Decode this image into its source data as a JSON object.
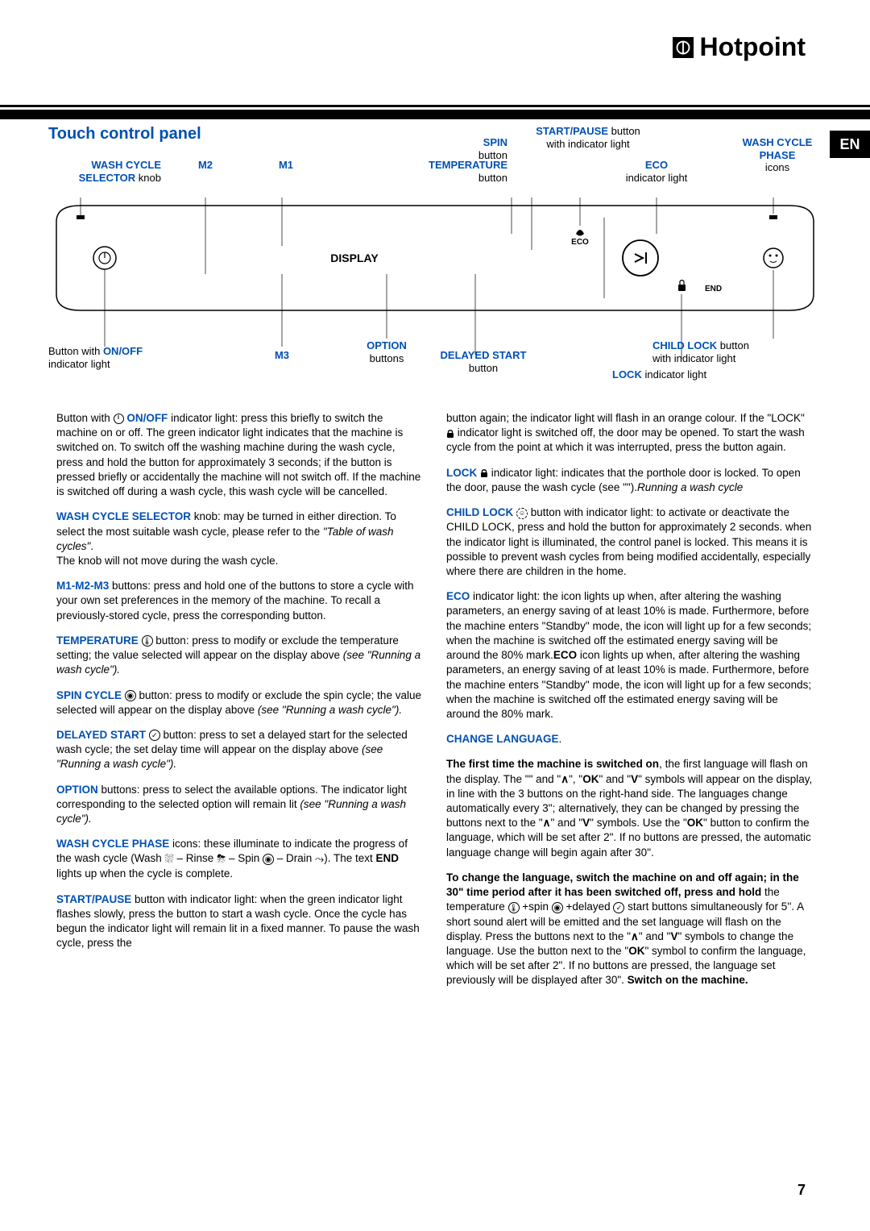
{
  "brand": "Hotpoint",
  "lang_tag": "EN",
  "page_number": "7",
  "section_title": "Touch control panel",
  "callouts": {
    "wash_cycle_selector": {
      "title": "WASH CYCLE SELECTOR",
      "sub": "knob"
    },
    "m1": "M1",
    "m2": "M2",
    "m3": "M3",
    "spin": {
      "title": "SPIN",
      "sub": "button"
    },
    "temperature": {
      "title": "TEMPERATURE",
      "sub": "button"
    },
    "start_pause": {
      "title": "START/PAUSE",
      "sub": "button",
      "sub2": "with indicator light"
    },
    "eco": {
      "title": "ECO",
      "sub": "indicator light"
    },
    "wash_cycle_phase": {
      "title": "WASH CYCLE PHASE",
      "sub": "icons"
    },
    "display": "DISPLAY",
    "on_off": {
      "pre": "Button with ",
      "title": "ON/OFF",
      "sub": "indicator light"
    },
    "option": {
      "title": "OPTION",
      "sub": "buttons"
    },
    "delayed_start": {
      "title": "DELAYED START",
      "sub": "button"
    },
    "child_lock": {
      "title": "CHILD LOCK",
      "sub": "button",
      "sub2": "with indicator light"
    },
    "lock": {
      "title": "LOCK",
      "sub": "indicator light"
    },
    "panel_eco_label": "ECO",
    "panel_end_label": "END"
  },
  "left_col": [
    {
      "lead": "",
      "pre_icon": "Button with ",
      "icon": "power",
      "lead2": "ON/OFF",
      "body": " indicator light: press this briefly to switch the machine on or off. The green indicator light indicates that the machine is switched on. To switch off the washing machine during the wash cycle, press and hold the button for approximately 3 seconds; if the button is pressed briefly or accidentally the machine will not switch off. If the machine is switched off during a wash cycle, this wash cycle will be cancelled."
    },
    {
      "lead": "WASH CYCLE SELECTOR",
      "body": " knob: may be turned in either direction. To select the most suitable wash cycle, please refer to the ",
      "ital": "\"Table of wash cycles\"",
      "body2": ".\nThe knob will not move during the wash cycle."
    },
    {
      "lead": "M1-M2-M3",
      "body": " buttons: press and hold one of the buttons to store a cycle with your own set preferences in the memory of the machine. To recall a previously-stored cycle, press the corresponding button."
    },
    {
      "lead": "TEMPERATURE",
      "icon": "temp",
      "body": " button: press to modify or exclude the temperature setting; the value selected will appear on the display above ",
      "ital": "(see \"Running a wash cycle\")."
    },
    {
      "lead": "SPIN CYCLE",
      "icon": "spin",
      "body": " button: press to modify or exclude the spin cycle; the value selected will appear on the display above ",
      "ital": "(see \"Running a wash cycle\")."
    },
    {
      "lead": "DELAYED START",
      "icon": "delay",
      "body": " button: press to set a delayed start for the selected wash cycle; the set delay time will appear on the display above ",
      "ital": "(see \"Running a wash cycle\")."
    },
    {
      "lead": "OPTION",
      "body": " buttons: press to select the available options. The indicator light corresponding to the selected option will remain lit ",
      "ital": "(see \"Running a wash cycle\")."
    },
    {
      "lead": "WASH CYCLE PHASE",
      "body": " icons: these illuminate to indicate the progress of the wash cycle (Wash ",
      "icon_seq": true,
      "body2": "). The text ",
      "bold_after": "END",
      "body3": " lights up when the cycle is complete."
    },
    {
      "lead": "START/PAUSE",
      "body": " button with indicator light: when the green indicator light flashes slowly, press the button to start a wash cycle. Once the cycle has begun the indicator light will remain lit in a fixed manner. To pause the wash cycle, press the"
    }
  ],
  "right_col": [
    {
      "body": "button again; the indicator light will flash in an orange colour. If the \"LOCK\" ",
      "icon": "lock",
      "body2": " indicator light is switched off, the door may be opened. To start the wash cycle from the point at which it was interrupted, press the button again."
    },
    {
      "lead": "LOCK",
      "icon": "lock",
      "body": " indicator light: indicates that the porthole door is locked. To open the door, pause the wash cycle (see \"",
      "ital": "Running a wash cycle",
      "body2": "\")."
    },
    {
      "lead": "CHILD LOCK",
      "icon": "childlock",
      "body": " button with indicator light: to activate or deactivate the CHILD LOCK, press and hold the button for approximately 2 seconds. when the indicator light is illuminated, the control panel is locked. This means it is possible to prevent wash cycles from being modified accidentally, especially where there are children in the home."
    },
    {
      "lead": "ECO",
      "body": " indicator light: the ",
      "bold_after": "ECO",
      "body2": " icon lights up when, after altering the washing parameters, an energy saving of at least 10% is made. Furthermore, before the machine enters \"Standby\" mode, the icon will light up for a few seconds; when the machine is switched off the estimated energy saving will be around the 80% mark."
    },
    {
      "lead": "CHANGE LANGUAGE",
      "body": "."
    },
    {
      "bold_start": "The first time the machine is switched on",
      "body": ", the first language will flash on the display. The \"",
      "bold1": "∧",
      "body1b": "\", \"",
      "bold2": "OK",
      "body2b": "\" and \"",
      "bold3": "V",
      "body3": "\" symbols will appear on the display, in line with the 3 buttons on the right-hand side. The languages change automatically every 3\"; alternatively, they can be changed by pressing the buttons next to the \"",
      "bold4": "∧",
      "body4": "\" and \"",
      "bold5": "V",
      "body5": "\" symbols. Use the \"",
      "bold6": "OK",
      "body6": "\" button to confirm the language, which will be set after 2\". If no buttons are pressed, the automatic language change will begin again after 30\"."
    },
    {
      "bold_start": "To change the language, switch the machine on and off again; in the 30\" time period after it has been switched off, press and hold",
      "body": " the temperature ",
      "icon": "temp",
      "mid": " +spin ",
      "icon2": "spin",
      "mid2": " +delayed ",
      "icon3": "delay",
      "body2": " start buttons simultaneously for 5''. A short sound alert will be emitted and the set language will flash on the display. Press the buttons next to the \"",
      "bold1": "∧",
      "b1": "\" and \"",
      "bold2": "V",
      "b2": "\" symbols to change the language. Use the button next to the \"",
      "bold3": "OK",
      "b3": "\" symbol to confirm the language, which will be set after 2\". If no buttons are pressed, the language set previously will be displayed after 30\". ",
      "bold_end": "Switch on the machine."
    }
  ]
}
